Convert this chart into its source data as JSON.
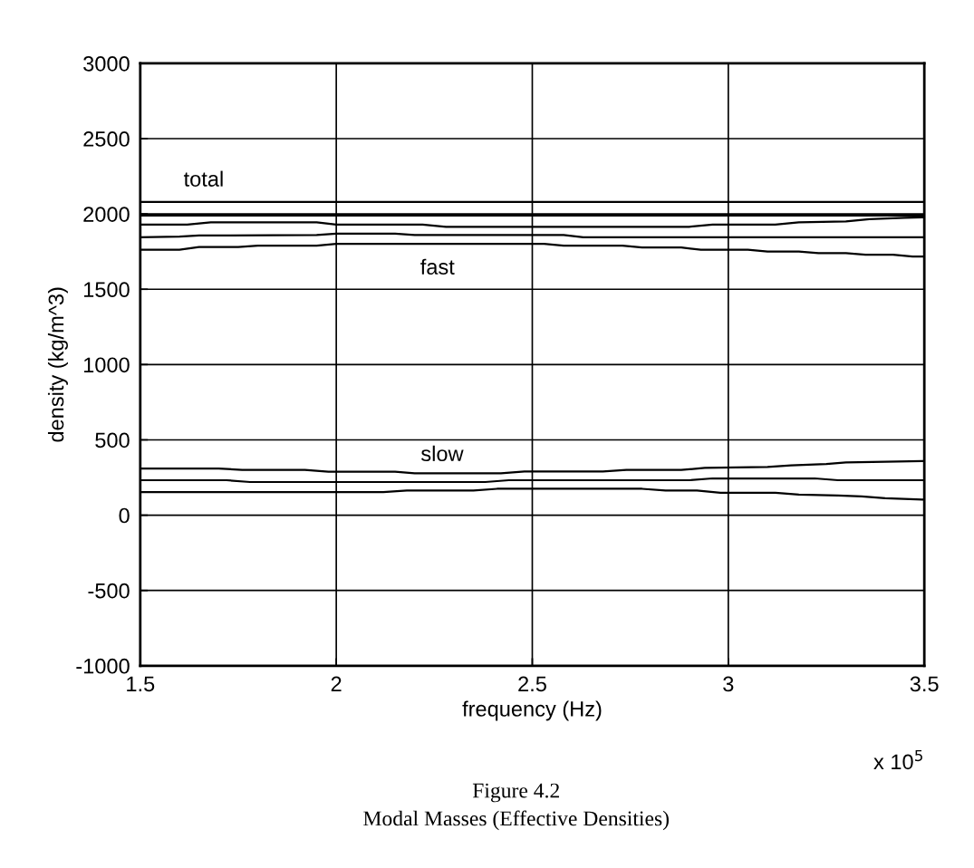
{
  "chart_data": {
    "type": "line",
    "xlabel": "frequency (Hz)",
    "ylabel": "density (kg/m^3)",
    "xlim": [
      1.5,
      3.5
    ],
    "xticks": [
      1.5,
      2,
      2.5,
      3,
      3.5
    ],
    "ylim": [
      -1000,
      3000
    ],
    "yticks": [
      -1000,
      -500,
      0,
      500,
      1000,
      1500,
      2000,
      2500,
      3000
    ],
    "grid": true,
    "marker": "none",
    "line_style": "solid",
    "series": [
      {
        "color": "#000000",
        "x": [
          1.5,
          3.5
        ],
        "values": [
          2080,
          2080
        ]
      },
      {
        "color": "#000000",
        "x": [
          1.5,
          3.5
        ],
        "values": [
          1990,
          1990
        ]
      },
      {
        "color": "#000000",
        "x": [
          1.5,
          1.62,
          1.68,
          1.95,
          2.0,
          2.22,
          2.28,
          2.9,
          2.96,
          3.12,
          3.18,
          3.3,
          3.36,
          3.45,
          3.5
        ],
        "values": [
          1930,
          1930,
          1945,
          1945,
          1930,
          1930,
          1915,
          1915,
          1930,
          1930,
          1945,
          1950,
          1965,
          1975,
          1978
        ]
      },
      {
        "color": "#000000",
        "x": [
          1.5,
          1.6,
          1.65,
          1.95,
          2.0,
          2.15,
          2.2,
          2.58,
          2.63,
          3.5
        ],
        "values": [
          1845,
          1850,
          1857,
          1860,
          1869,
          1869,
          1860,
          1860,
          1845,
          1845
        ]
      },
      {
        "color": "#000000",
        "x": [
          1.5,
          1.6,
          1.65,
          1.75,
          1.8,
          1.95,
          2.0,
          2.53,
          2.58,
          2.73,
          2.78,
          2.88,
          2.93,
          3.05,
          3.1,
          3.18,
          3.23,
          3.3,
          3.35,
          3.42,
          3.47,
          3.5
        ],
        "values": [
          1762,
          1762,
          1780,
          1780,
          1790,
          1790,
          1802,
          1802,
          1790,
          1790,
          1778,
          1778,
          1762,
          1762,
          1750,
          1750,
          1740,
          1740,
          1730,
          1730,
          1718,
          1718
        ]
      },
      {
        "color": "#000000",
        "x": [
          1.5,
          1.7,
          1.76,
          1.92,
          1.98,
          2.15,
          2.2,
          2.42,
          2.48,
          2.68,
          2.74,
          2.88,
          2.94,
          3.1,
          3.16,
          3.25,
          3.3,
          3.4,
          3.5
        ],
        "values": [
          310,
          310,
          300,
          300,
          288,
          288,
          278,
          278,
          290,
          290,
          300,
          300,
          314,
          320,
          330,
          340,
          350,
          355,
          359
        ]
      },
      {
        "color": "#000000",
        "x": [
          1.5,
          1.72,
          1.78,
          2.38,
          2.44,
          2.9,
          2.96,
          3.22,
          3.28,
          3.5
        ],
        "values": [
          232,
          232,
          220,
          220,
          232,
          232,
          244,
          244,
          232,
          232
        ]
      },
      {
        "color": "#000000",
        "x": [
          1.5,
          2.12,
          2.18,
          2.35,
          2.41,
          2.78,
          2.84,
          2.92,
          2.98,
          3.12,
          3.18,
          3.28,
          3.34,
          3.4,
          3.5
        ],
        "values": [
          153,
          153,
          163,
          163,
          175,
          175,
          163,
          163,
          149,
          149,
          137,
          130,
          125,
          113,
          103
        ]
      }
    ],
    "annotations": [
      "total",
      "fast",
      "slow",
      "x 10$^{5}$",
      "Figure 4.2",
      "Modal Masses (Effective Densities)"
    ]
  }
}
